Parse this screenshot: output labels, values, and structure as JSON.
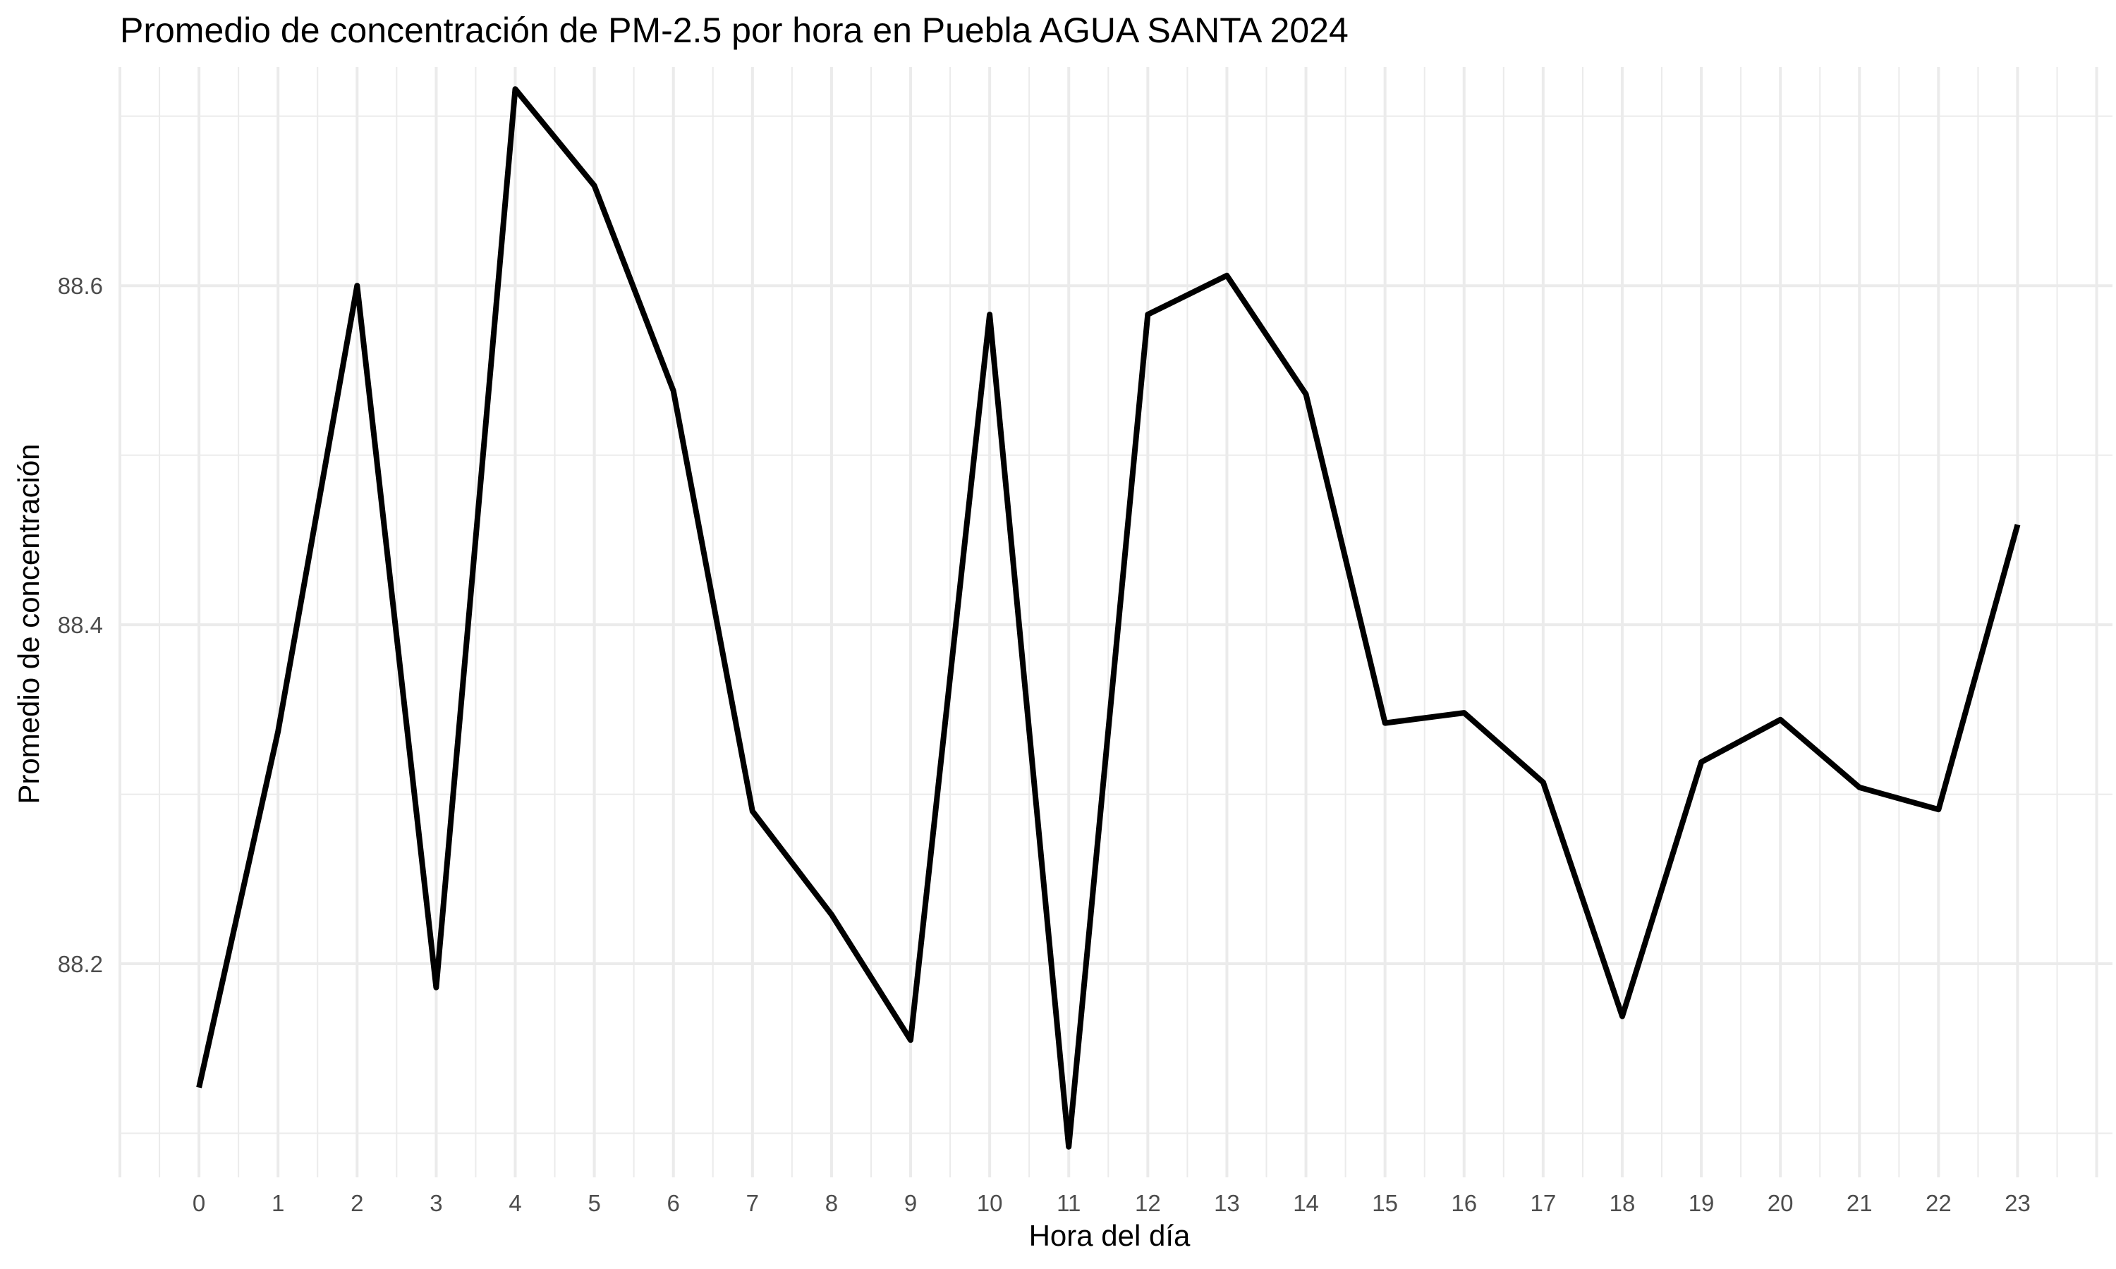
{
  "chart_data": {
    "type": "line",
    "title": "Promedio de concentración de PM-2.5 por hora en Puebla AGUA SANTA 2024",
    "xlabel": "Hora del día",
    "ylabel": "Promedio de concentración",
    "x": [
      0,
      1,
      2,
      3,
      4,
      5,
      6,
      7,
      8,
      9,
      10,
      11,
      12,
      13,
      14,
      15,
      16,
      17,
      18,
      19,
      20,
      21,
      22,
      23
    ],
    "x_tick_labels": [
      "0",
      "1",
      "2",
      "3",
      "4",
      "5",
      "6",
      "7",
      "8",
      "9",
      "10",
      "11",
      "12",
      "13",
      "14",
      "15",
      "16",
      "17",
      "18",
      "19",
      "20",
      "21",
      "22",
      "23"
    ],
    "series": [
      {
        "values": [
          88.127,
          88.337,
          88.6,
          88.186,
          88.716,
          88.659,
          88.538,
          88.29,
          88.229,
          88.155,
          88.583,
          88.092,
          88.583,
          88.606,
          88.536,
          88.342,
          88.348,
          88.307,
          88.169,
          88.319,
          88.344,
          88.304,
          88.291,
          88.459
        ],
        "color": "#000000"
      }
    ],
    "y_ticks": [
      88.2,
      88.4,
      88.6
    ],
    "y_tick_labels": [
      "88.2",
      "88.4",
      "88.6"
    ],
    "xlim": [
      -1.0,
      24.2
    ],
    "ylim": [
      88.074,
      88.729
    ],
    "grid": true,
    "legend": "none"
  }
}
